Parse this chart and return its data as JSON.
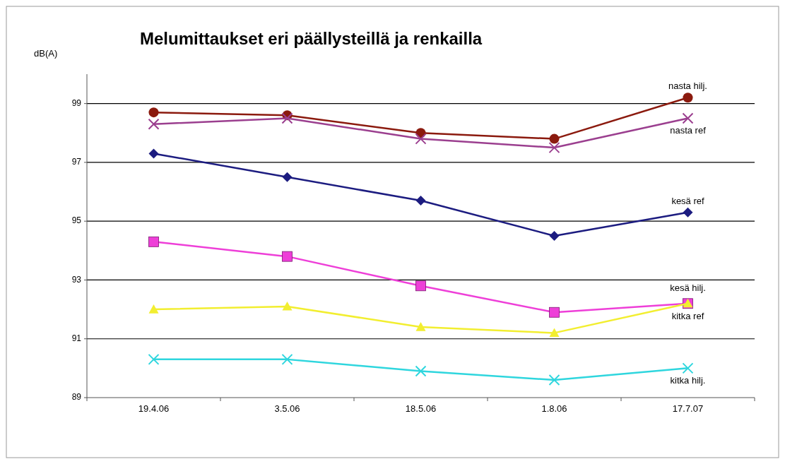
{
  "chart_data": {
    "type": "line",
    "title": "Melumittaukset  eri päällysteillä ja renkailla",
    "ylabel": "dB(A)",
    "categories": [
      "19.4.06",
      "3.5.06",
      "18.5.06",
      "1.8.06",
      "17.7.07"
    ],
    "series": [
      {
        "name": "nasta hilj.",
        "color": "#8b1a0e",
        "marker": "circle",
        "values": [
          98.7,
          98.6,
          98.0,
          97.8,
          99.2
        ]
      },
      {
        "name": "nasta ref",
        "color": "#9b3f8f",
        "marker": "cross",
        "values": [
          98.3,
          98.5,
          97.8,
          97.5,
          98.5
        ]
      },
      {
        "name": "kesä ref",
        "color": "#1c1c80",
        "marker": "diamond",
        "values": [
          97.3,
          96.5,
          95.7,
          94.5,
          95.3
        ]
      },
      {
        "name": "kesä hilj.",
        "color": "#ee3fd8",
        "marker": "square",
        "values": [
          94.3,
          93.8,
          92.8,
          91.9,
          92.2
        ]
      },
      {
        "name": "kitka ref",
        "color": "#f2ee30",
        "marker": "triangle",
        "values": [
          92.0,
          92.1,
          91.4,
          91.2,
          92.2
        ]
      },
      {
        "name": "kitka hilj.",
        "color": "#2fd6de",
        "marker": "cross",
        "values": [
          90.3,
          90.3,
          89.9,
          89.6,
          90.0
        ]
      }
    ],
    "ylim": [
      89,
      100
    ],
    "yticks": [
      89,
      91,
      93,
      95,
      97,
      99
    ],
    "grid": "y",
    "line_style": "solid"
  }
}
